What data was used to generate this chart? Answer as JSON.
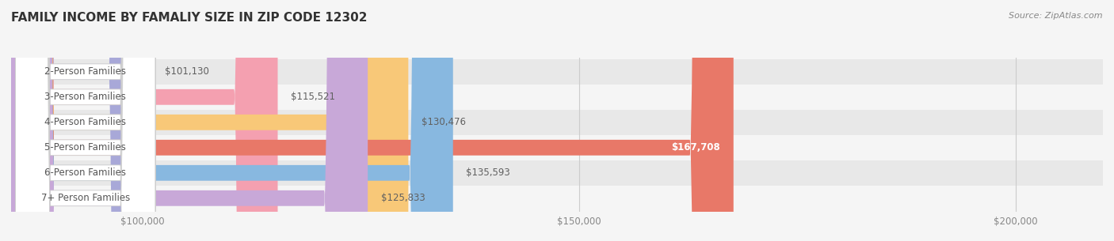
{
  "title": "FAMILY INCOME BY FAMALIY SIZE IN ZIP CODE 12302",
  "source": "Source: ZipAtlas.com",
  "categories": [
    "2-Person Families",
    "3-Person Families",
    "4-Person Families",
    "5-Person Families",
    "6-Person Families",
    "7+ Person Families"
  ],
  "values": [
    101130,
    115521,
    130476,
    167708,
    135593,
    125833
  ],
  "bar_colors": [
    "#a8a8d8",
    "#f4a0b0",
    "#f8c878",
    "#e87868",
    "#88b8e0",
    "#c8a8d8"
  ],
  "label_colors": [
    "#606060",
    "#606060",
    "#606060",
    "#ffffff",
    "#606060",
    "#606060"
  ],
  "bg_color": "#f5f5f5",
  "row_bg_colors": [
    "#e8e8e8",
    "#f5f5f5",
    "#e8e8e8",
    "#f5f5f5",
    "#e8e8e8",
    "#f5f5f5"
  ],
  "xmin": 85000,
  "xmax": 210000,
  "xticks": [
    100000,
    150000,
    200000
  ],
  "xtick_labels": [
    "$100,000",
    "$150,000",
    "$200,000"
  ],
  "value_labels": [
    "$101,130",
    "$115,521",
    "$130,476",
    "$167,708",
    "$135,593",
    "$125,833"
  ],
  "label_fontsize": 8.5,
  "title_fontsize": 11,
  "bar_height": 0.62
}
